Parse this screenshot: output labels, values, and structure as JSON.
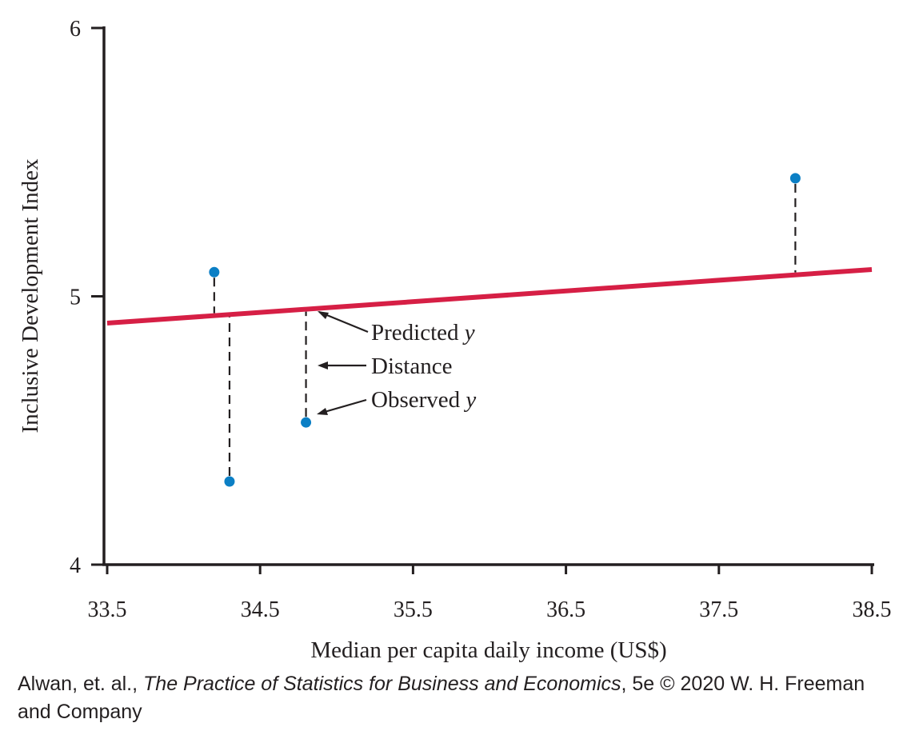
{
  "chart_data": {
    "type": "scatter",
    "xlabel": "Median per capita daily income (US$)",
    "ylabel": "Inclusive Development Index",
    "xlim": [
      33.5,
      38.5
    ],
    "ylim": [
      4,
      6
    ],
    "x_ticks": [
      "33.5",
      "34.5",
      "35.5",
      "36.5",
      "37.5",
      "38.5"
    ],
    "y_ticks": [
      "4",
      "5",
      "6"
    ],
    "points": [
      {
        "x": 34.2,
        "y": 5.09
      },
      {
        "x": 34.3,
        "y": 4.31
      },
      {
        "x": 34.8,
        "y": 4.53
      },
      {
        "x": 38.0,
        "y": 5.44
      }
    ],
    "regression_line": {
      "x": [
        33.5,
        38.5
      ],
      "y": [
        4.9,
        5.1
      ]
    },
    "annotations": [
      {
        "text": "Predicted ",
        "var": "y"
      },
      {
        "text": "Distance",
        "var": ""
      },
      {
        "text": "Observed ",
        "var": "y"
      }
    ],
    "grid": false,
    "colors": {
      "points": "#0b7fc5",
      "line": "#d61f45",
      "axis": "#231f20"
    }
  },
  "credit": {
    "authors": "Alwan, et. al., ",
    "book": "The Practice of Statistics for Business and Economics",
    "rest": ", 5e © 2020 W. H. Freeman and Company"
  }
}
